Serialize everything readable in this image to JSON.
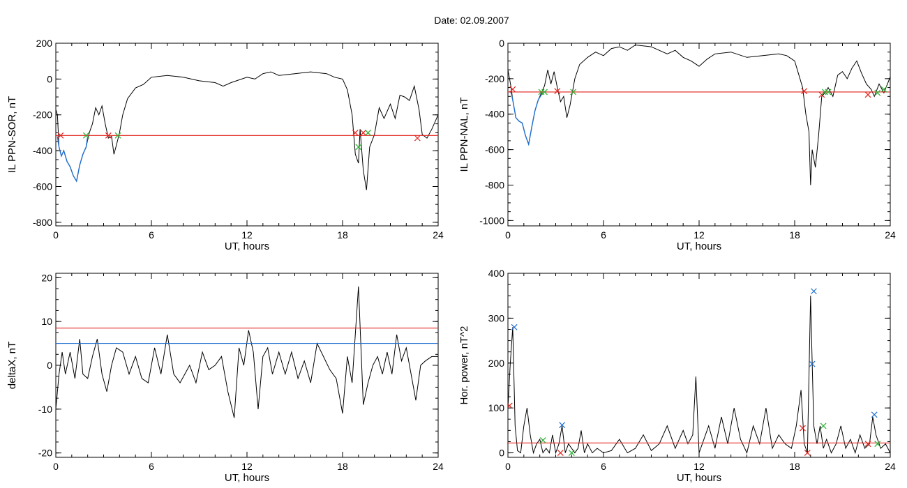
{
  "figure_title": "Date:  02.09.2007",
  "colors": {
    "trace": "#000000",
    "threshold_red": "#e0201a",
    "threshold_blue": "#1f6fd0",
    "marker_green": "#27b02f",
    "marker_red": "#e0201a",
    "marker_blue": "#1f6fd0"
  },
  "chart_data": [
    {
      "type": "line",
      "title": "",
      "xlabel": "UT, hours",
      "ylabel": "IL PPN-SOR, nT",
      "xlim": [
        0,
        24
      ],
      "ylim": [
        -820,
        200
      ],
      "x_ticks": [
        0,
        6,
        12,
        18,
        24
      ],
      "y_ticks": [
        -800,
        -600,
        -400,
        -200,
        0,
        200
      ],
      "series": [
        {
          "color": "#000000",
          "x": [
            0.0,
            0.1,
            0.2,
            0.35,
            0.5,
            0.7,
            0.9,
            1.1,
            1.3,
            1.5,
            1.7,
            1.9,
            2.1,
            2.3,
            2.5,
            2.7,
            2.9,
            3.1,
            3.3,
            3.5,
            3.65,
            3.8,
            4.0,
            4.2,
            4.5,
            5.0,
            5.5,
            6.0,
            7.0,
            8.0,
            9.0,
            10.0,
            10.5,
            11.0,
            12.0,
            12.5,
            13.0,
            13.5,
            14.0,
            15.0,
            16.0,
            17.0,
            17.5,
            18.0,
            18.3,
            18.6,
            18.8,
            19.0,
            19.1,
            19.3,
            19.5,
            19.7,
            20.0,
            20.3,
            20.6,
            21.0,
            21.3,
            21.6,
            21.9,
            22.2,
            22.5,
            22.8,
            23.0,
            23.3,
            23.6,
            24.0
          ],
          "y": [
            -170,
            -200,
            -380,
            -430,
            -400,
            -460,
            -490,
            -540,
            -570,
            -480,
            -420,
            -380,
            -300,
            -250,
            -160,
            -200,
            -150,
            -250,
            -330,
            -320,
            -420,
            -370,
            -300,
            -200,
            -110,
            -50,
            -30,
            10,
            20,
            10,
            -10,
            -20,
            -40,
            -20,
            10,
            0,
            30,
            40,
            20,
            30,
            40,
            30,
            10,
            0,
            -60,
            -200,
            -420,
            -470,
            -280,
            -510,
            -620,
            -380,
            -310,
            -160,
            -220,
            -140,
            -220,
            -90,
            -100,
            -120,
            -40,
            -170,
            -310,
            -330,
            -280,
            -200
          ]
        },
        {
          "color": "#1f6fd0",
          "name": "",
          "x": [
            0.1,
            0.2,
            0.35,
            0.5,
            0.7,
            0.9,
            1.1,
            1.3,
            1.5,
            1.7,
            1.9,
            2.0
          ],
          "y": [
            -320,
            -380,
            -430,
            -400,
            -460,
            -490,
            -540,
            -570,
            -480,
            -420,
            -380,
            -320
          ]
        }
      ],
      "thresholds": [
        {
          "y": -315,
          "color": "#e0201a"
        }
      ],
      "markers": [
        {
          "x": 0.3,
          "y": -315,
          "color": "#e0201a"
        },
        {
          "x": 1.9,
          "y": -315,
          "color": "#27b02f"
        },
        {
          "x": 3.3,
          "y": -315,
          "color": "#e0201a"
        },
        {
          "x": 3.9,
          "y": -315,
          "color": "#27b02f"
        },
        {
          "x": 18.8,
          "y": -300,
          "color": "#e0201a"
        },
        {
          "x": 19.0,
          "y": -380,
          "color": "#27b02f"
        },
        {
          "x": 19.3,
          "y": -300,
          "color": "#e0201a"
        },
        {
          "x": 19.6,
          "y": -300,
          "color": "#27b02f"
        },
        {
          "x": 22.7,
          "y": -330,
          "color": "#e0201a"
        }
      ]
    },
    {
      "type": "line",
      "title": "",
      "xlabel": "UT, hours",
      "ylabel": "IL PPN-NAL, nT",
      "xlim": [
        0,
        24
      ],
      "ylim": [
        -1030,
        0
      ],
      "x_ticks": [
        0,
        6,
        12,
        18,
        24
      ],
      "y_ticks": [
        -1000,
        -800,
        -600,
        -400,
        -200,
        0
      ],
      "series": [
        {
          "color": "#000000",
          "x": [
            0.0,
            0.1,
            0.2,
            0.3,
            0.5,
            0.7,
            0.9,
            1.1,
            1.3,
            1.5,
            1.7,
            1.9,
            2.1,
            2.3,
            2.5,
            2.7,
            2.9,
            3.1,
            3.3,
            3.5,
            3.7,
            3.9,
            4.2,
            4.5,
            5.0,
            5.5,
            6.0,
            6.5,
            7.0,
            7.5,
            8.0,
            9.0,
            10.0,
            10.5,
            11.0,
            11.5,
            12.0,
            12.5,
            13.0,
            14.0,
            15.0,
            16.0,
            17.0,
            17.5,
            18.0,
            18.5,
            18.7,
            18.9,
            19.0,
            19.1,
            19.3,
            19.5,
            19.7,
            19.9,
            20.1,
            20.4,
            20.7,
            21.0,
            21.3,
            21.6,
            21.9,
            22.2,
            22.5,
            22.8,
            23.0,
            23.3,
            23.6,
            24.0
          ],
          "y": [
            -150,
            -200,
            -250,
            -320,
            -420,
            -440,
            -450,
            -520,
            -570,
            -470,
            -380,
            -320,
            -280,
            -240,
            -150,
            -230,
            -160,
            -250,
            -330,
            -300,
            -420,
            -350,
            -200,
            -120,
            -80,
            -50,
            -70,
            -30,
            -20,
            -40,
            -10,
            -20,
            -60,
            -40,
            -80,
            -100,
            -130,
            -90,
            -60,
            -50,
            -80,
            -70,
            -60,
            -70,
            -100,
            -250,
            -400,
            -500,
            -800,
            -600,
            -700,
            -520,
            -300,
            -280,
            -250,
            -300,
            -180,
            -160,
            -200,
            -140,
            -100,
            -170,
            -230,
            -260,
            -300,
            -230,
            -280,
            -190
          ]
        },
        {
          "color": "#1f6fd0",
          "name": "",
          "x": [
            0.1,
            0.2,
            0.3,
            0.5,
            0.7,
            0.9,
            1.1,
            1.3,
            1.5,
            1.7,
            1.9,
            2.1,
            2.2
          ],
          "y": [
            -270,
            -280,
            -320,
            -420,
            -440,
            -450,
            -520,
            -570,
            -470,
            -380,
            -320,
            -290,
            -280
          ]
        }
      ],
      "thresholds": [
        {
          "y": -275,
          "color": "#e0201a"
        }
      ],
      "markers": [
        {
          "x": 0.3,
          "y": -260,
          "color": "#e0201a"
        },
        {
          "x": 2.1,
          "y": -275,
          "color": "#27b02f"
        },
        {
          "x": 2.3,
          "y": -275,
          "color": "#27b02f"
        },
        {
          "x": 3.1,
          "y": -270,
          "color": "#e0201a"
        },
        {
          "x": 4.1,
          "y": -275,
          "color": "#27b02f"
        },
        {
          "x": 18.6,
          "y": -270,
          "color": "#e0201a"
        },
        {
          "x": 19.7,
          "y": -290,
          "color": "#e0201a"
        },
        {
          "x": 19.9,
          "y": -275,
          "color": "#27b02f"
        },
        {
          "x": 20.1,
          "y": -275,
          "color": "#27b02f"
        },
        {
          "x": 22.6,
          "y": -290,
          "color": "#e0201a"
        },
        {
          "x": 23.2,
          "y": -280,
          "color": "#27b02f"
        },
        {
          "x": 23.6,
          "y": -260,
          "color": "#27b02f"
        }
      ]
    },
    {
      "type": "line",
      "title": "",
      "xlabel": "UT, hours",
      "ylabel": "deltaX, nT",
      "xlim": [
        0,
        24
      ],
      "ylim": [
        -21,
        21
      ],
      "x_ticks": [
        0,
        6,
        12,
        18,
        24
      ],
      "y_ticks": [
        -20,
        -10,
        0,
        10,
        20
      ],
      "series": [
        {
          "color": "#000000",
          "x": [
            0.0,
            0.2,
            0.4,
            0.6,
            0.9,
            1.2,
            1.5,
            1.7,
            2.0,
            2.3,
            2.6,
            2.9,
            3.2,
            3.5,
            3.8,
            4.2,
            4.6,
            5.0,
            5.4,
            5.8,
            6.2,
            6.6,
            7.0,
            7.4,
            7.8,
            8.1,
            8.4,
            8.8,
            9.2,
            9.6,
            10.0,
            10.4,
            10.8,
            11.2,
            11.5,
            11.8,
            12.1,
            12.4,
            12.7,
            13.0,
            13.3,
            13.6,
            14.0,
            14.4,
            14.8,
            15.2,
            15.6,
            16.0,
            16.4,
            16.8,
            17.2,
            17.6,
            18.0,
            18.3,
            18.6,
            19.0,
            19.3,
            19.6,
            19.9,
            20.2,
            20.5,
            20.8,
            21.1,
            21.4,
            21.7,
            22.0,
            22.3,
            22.6,
            22.9,
            23.2,
            23.6,
            24.0
          ],
          "y": [
            -10,
            -2,
            3,
            -2,
            3,
            -3,
            6,
            -2,
            -3,
            2,
            6,
            -2,
            -6,
            0,
            4,
            3,
            -2,
            2,
            -3,
            -4,
            4,
            -2,
            7,
            -2,
            -4,
            -2,
            0,
            -4,
            3,
            -1,
            0,
            2,
            -6,
            -12,
            4,
            0,
            8,
            3,
            -10,
            2,
            4,
            -2,
            3,
            -2,
            3,
            -3,
            1,
            -4,
            5,
            2,
            -1,
            -3,
            -11,
            2,
            -4,
            18,
            -9,
            -4,
            0,
            2,
            -2,
            3,
            -2,
            7,
            1,
            4,
            -2,
            -8,
            0,
            1,
            2,
            2
          ]
        }
      ],
      "thresholds": [
        {
          "y": 8.5,
          "color": "#e0201a"
        },
        {
          "y": 5,
          "color": "#1f6fd0"
        }
      ],
      "markers": []
    },
    {
      "type": "line",
      "title": "",
      "xlabel": "UT, hours",
      "ylabel": "Hor. power, nT^2",
      "xlim": [
        0,
        24
      ],
      "ylim": [
        -10,
        400
      ],
      "x_ticks": [
        0,
        6,
        12,
        18,
        24
      ],
      "y_ticks": [
        0,
        100,
        200,
        300,
        400
      ],
      "series": [
        {
          "color": "#000000",
          "x": [
            0.0,
            0.15,
            0.3,
            0.45,
            0.6,
            0.8,
            1.0,
            1.2,
            1.4,
            1.6,
            1.8,
            2.0,
            2.2,
            2.4,
            2.6,
            2.8,
            3.0,
            3.2,
            3.4,
            3.6,
            3.8,
            4.0,
            4.2,
            4.4,
            4.6,
            4.8,
            5.0,
            5.3,
            5.6,
            6.0,
            6.5,
            7.0,
            7.5,
            8.0,
            8.5,
            9.0,
            9.5,
            10.0,
            10.5,
            11.0,
            11.3,
            11.6,
            11.8,
            12.0,
            12.3,
            12.6,
            13.0,
            13.4,
            13.8,
            14.2,
            14.6,
            15.0,
            15.4,
            15.8,
            16.2,
            16.6,
            17.0,
            17.4,
            17.8,
            18.1,
            18.4,
            18.6,
            18.8,
            19.0,
            19.1,
            19.2,
            19.4,
            19.6,
            19.8,
            20.0,
            20.3,
            20.6,
            20.9,
            21.2,
            21.5,
            21.8,
            22.1,
            22.4,
            22.7,
            22.9,
            23.1,
            23.4,
            23.7,
            24.0
          ],
          "y": [
            100,
            200,
            280,
            60,
            5,
            0,
            60,
            100,
            40,
            0,
            20,
            30,
            0,
            10,
            0,
            40,
            0,
            20,
            60,
            0,
            20,
            10,
            0,
            10,
            50,
            0,
            20,
            0,
            10,
            0,
            5,
            30,
            0,
            10,
            40,
            5,
            20,
            60,
            10,
            50,
            20,
            40,
            170,
            0,
            30,
            60,
            10,
            80,
            20,
            100,
            30,
            0,
            60,
            20,
            100,
            10,
            40,
            20,
            10,
            60,
            140,
            20,
            0,
            350,
            200,
            60,
            20,
            60,
            10,
            30,
            0,
            20,
            60,
            10,
            30,
            0,
            40,
            10,
            20,
            80,
            40,
            10,
            20,
            0
          ]
        }
      ],
      "thresholds": [
        {
          "y": 22,
          "color": "#e0201a"
        }
      ],
      "markers": [
        {
          "x": 0.1,
          "y": 105,
          "color": "#e0201a"
        },
        {
          "x": 0.4,
          "y": 280,
          "color": "#1f6fd0"
        },
        {
          "x": 2.2,
          "y": 28,
          "color": "#27b02f"
        },
        {
          "x": 3.4,
          "y": 62,
          "color": "#1f6fd0"
        },
        {
          "x": 3.3,
          "y": 0,
          "color": "#e0201a"
        },
        {
          "x": 4.0,
          "y": 0,
          "color": "#27b02f"
        },
        {
          "x": 18.5,
          "y": 55,
          "color": "#e0201a"
        },
        {
          "x": 18.8,
          "y": 0,
          "color": "#e0201a"
        },
        {
          "x": 19.2,
          "y": 360,
          "color": "#1f6fd0"
        },
        {
          "x": 19.1,
          "y": 198,
          "color": "#1f6fd0"
        },
        {
          "x": 19.8,
          "y": 60,
          "color": "#27b02f"
        },
        {
          "x": 22.6,
          "y": 20,
          "color": "#e0201a"
        },
        {
          "x": 23.0,
          "y": 85,
          "color": "#1f6fd0"
        },
        {
          "x": 23.2,
          "y": 20,
          "color": "#27b02f"
        }
      ]
    }
  ]
}
